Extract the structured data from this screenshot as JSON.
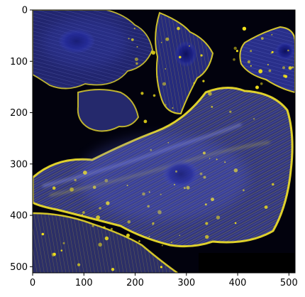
{
  "image": {
    "subject": "fluorescence-microscopy-cells",
    "background_color": "#02020d",
    "channel_colors": {
      "actin": "#f2e21a",
      "nuclei": "#2a2fd6",
      "tubulin": "#6b74e8"
    }
  },
  "axes": {
    "x_ticks": [
      "0",
      "100",
      "200",
      "300",
      "400",
      "500"
    ],
    "y_ticks": [
      "0",
      "100",
      "200",
      "300",
      "400",
      "500"
    ],
    "x_tick_values": [
      0,
      100,
      200,
      300,
      400,
      500
    ],
    "y_tick_values": [
      0,
      100,
      200,
      300,
      400,
      500
    ],
    "x_range": [
      0,
      512
    ],
    "y_range": [
      0,
      512
    ],
    "y_inverted": true,
    "grid": false,
    "frame_color": "#000000"
  }
}
